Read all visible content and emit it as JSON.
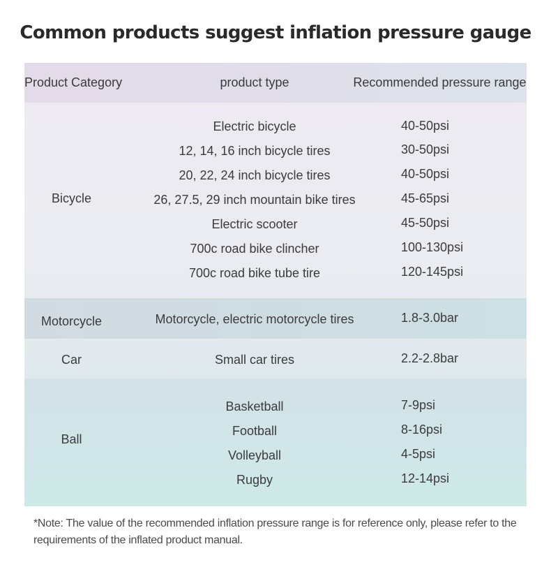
{
  "title": "Common products suggest inflation pressure gauge",
  "headers": {
    "category": "Product Category",
    "type": "product type",
    "range": "Recommended pressure range"
  },
  "groups": [
    {
      "category": "Bicycle",
      "rows": [
        {
          "type": "Electric bicycle",
          "range": "40-50psi"
        },
        {
          "type": "12, 14, 16 inch bicycle tires",
          "range": "30-50psi"
        },
        {
          "type": "20, 22, 24 inch bicycle tires",
          "range": "40-50psi"
        },
        {
          "type": "26, 27.5, 29 inch mountain bike tires",
          "range": "45-65psi"
        },
        {
          "type": "Electric scooter",
          "range": "45-50psi"
        },
        {
          "type": "700c road bike clincher",
          "range": "100-130psi"
        },
        {
          "type": "700c road bike tube tire",
          "range": "120-145psi"
        }
      ]
    },
    {
      "category": "Motorcycle",
      "rows": [
        {
          "type": "Motorcycle, electric motorcycle tires",
          "range": "1.8-3.0bar"
        }
      ]
    },
    {
      "category": "Car",
      "rows": [
        {
          "type": "Small car tires",
          "range": "2.2-2.8bar"
        }
      ]
    },
    {
      "category": "Ball",
      "rows": [
        {
          "type": "Basketball",
          "range": "7-9psi"
        },
        {
          "type": "Football",
          "range": "8-16psi"
        },
        {
          "type": "Volleyball",
          "range": "4-5psi"
        },
        {
          "type": "Rugby",
          "range": "12-14psi"
        }
      ]
    }
  ],
  "note": "*Note: The value of the recommended inflation pressure range is for reference only, please refer to the requirements of the inflated product manual."
}
